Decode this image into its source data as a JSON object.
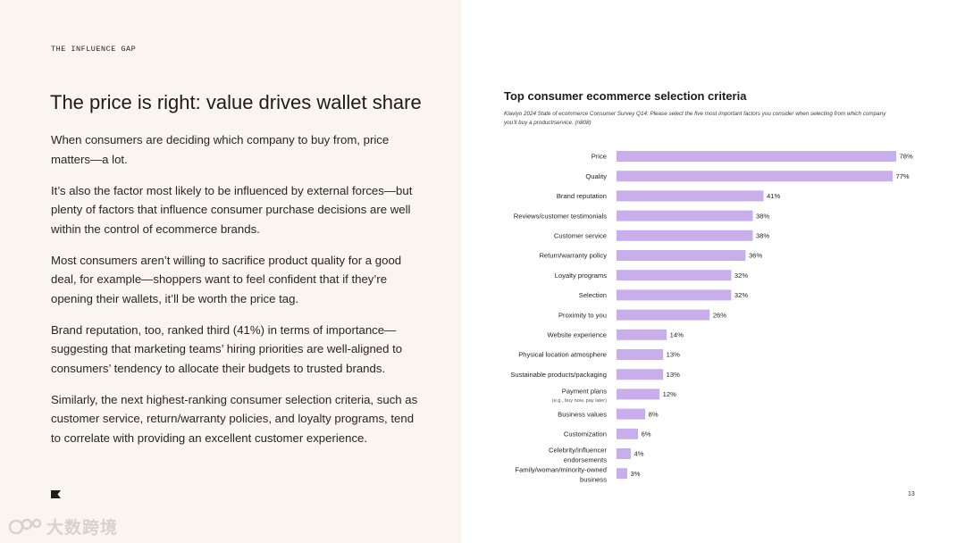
{
  "eyebrow": "THE INFLUENCE GAP",
  "headline": "The price is right: value drives wallet share",
  "paragraphs": [
    "When consumers are deciding which company to buy from, price matters—a lot.",
    "It’s also the factor most likely to be influenced by external forces—but plenty of factors that influence consumer purchase decisions are well within the control of ecommerce brands.",
    "Most consumers aren’t willing to sacrifice product quality for a good deal, for example—shoppers want to feel confident that if they’re opening their wallets, it’ll be worth the price tag.",
    "Brand reputation, too, ranked third (41%) in terms of importance—suggesting that marketing teams’ hiring priorities are well-aligned to consumers’ tendency to allocate their budgets to trusted brands.",
    "Similarly, the next highest-ranking consumer selection criteria, such as customer service, return/warranty policies, and loyalty programs, tend to correlate with providing an excellent customer experience."
  ],
  "page_number": "13",
  "watermark": "大数跨境",
  "colors": {
    "bar": "#c8aeea",
    "panel_bg": "#fbf5ef"
  },
  "chart_data": {
    "type": "bar",
    "orientation": "horizontal",
    "title": "Top consumer ecommerce selection criteria",
    "subtitle": "Klaviyo 2024 State of ecommerce Consumer Survey Q14: Please select the five most important factors you consider when selecting from which company you’ll buy a product/service. (n808)",
    "categories": [
      "Price",
      "Quality",
      "Brand reputation",
      "Reviews/customer testimonials",
      "Customer service",
      "Return/warranty policy",
      "Loyalty programs",
      "Selection",
      "Proximity to you",
      "Website experience",
      "Physical location atmosphere",
      "Sustainable products/packaging",
      "Payment plans",
      "Business values",
      "Customization",
      "Celebrity/influencer endorsements",
      "Family/woman/minority-owned business"
    ],
    "sublabels": {
      "Payment plans": "(e.g., buy now, pay later)"
    },
    "values": [
      78,
      77,
      41,
      38,
      38,
      36,
      32,
      32,
      26,
      14,
      13,
      13,
      12,
      8,
      6,
      4,
      3
    ],
    "value_labels": [
      "78%",
      "77%",
      "41%",
      "38%",
      "38%",
      "36%",
      "32%",
      "32%",
      "26%",
      "14%",
      "13%",
      "13%",
      "12%",
      "8%",
      "6%",
      "4%",
      "3%"
    ],
    "xlim": [
      0,
      78
    ],
    "grid": false,
    "legend": "none"
  }
}
